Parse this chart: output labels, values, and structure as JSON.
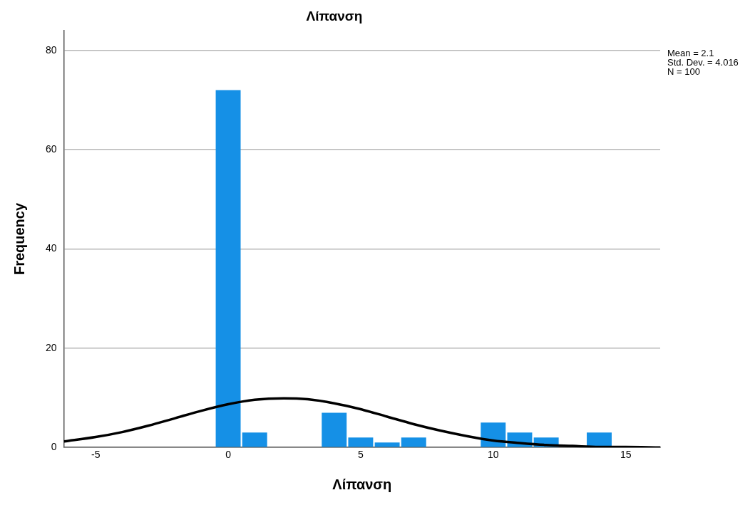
{
  "chart_data": {
    "type": "histogram",
    "title": "Λίπανση",
    "xlabel": "Λίπανση",
    "ylabel": "Frequency",
    "bins": [
      -0.5,
      0.5,
      1.5,
      2.5,
      3.5,
      4.5,
      5.5,
      6.5,
      7.5,
      8.5,
      9.5,
      10.5,
      11.5,
      12.5,
      13.5,
      14.5
    ],
    "values": [
      72,
      3,
      0,
      0,
      7,
      2,
      1,
      2,
      0,
      0,
      5,
      3,
      2,
      0,
      3
    ],
    "color": "#1590e6",
    "series": [
      {
        "type": "line",
        "color": "#000000",
        "x": [
          -6.2,
          -5,
          -4,
          -3,
          -2,
          -1,
          0,
          1,
          2.1,
          3,
          4,
          5,
          6,
          7,
          8,
          9,
          10,
          11,
          12,
          13,
          14,
          15,
          16.3
        ],
        "values": [
          1.2,
          2.1,
          3.1,
          4.4,
          5.9,
          7.4,
          8.7,
          9.6,
          9.9,
          9.7,
          8.9,
          7.7,
          6.2,
          4.7,
          3.4,
          2.3,
          1.4,
          0.9,
          0.5,
          0.3,
          0.1,
          0.1,
          0
        ]
      }
    ],
    "xlim": [
      -6.2,
      16.3
    ],
    "xticks": [
      -5,
      0,
      5,
      10,
      15
    ],
    "ylim": [
      0,
      84
    ],
    "yticks": [
      0,
      20,
      40,
      60,
      80
    ],
    "grid": "y",
    "legend": false,
    "marker": "none",
    "line_style": "solid",
    "annotations": [
      "Mean = 2.1\nStd. Dev. = 4.016\nN = 100"
    ]
  }
}
